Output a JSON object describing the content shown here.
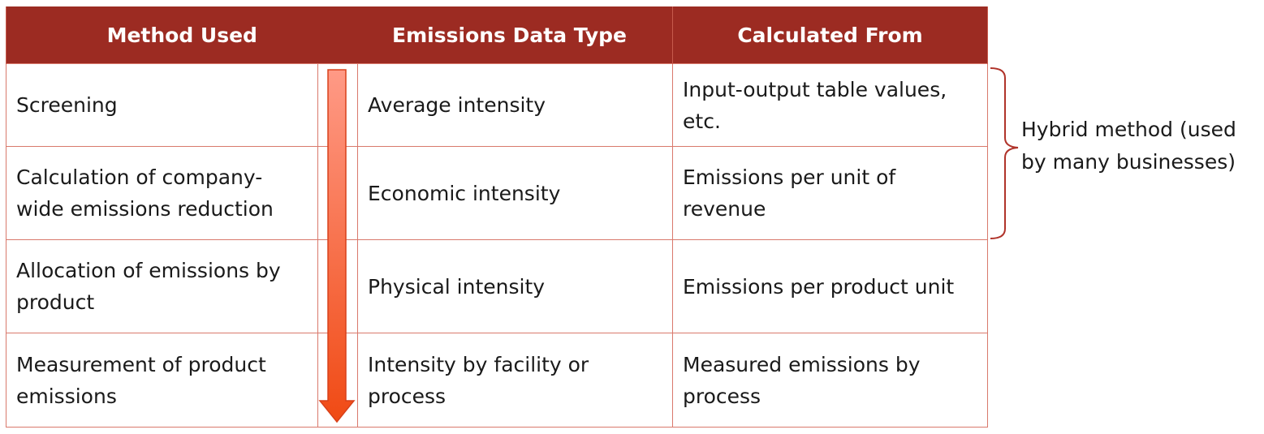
{
  "table": {
    "headers": {
      "method": "Method Used",
      "data_type": "Emissions Data Type",
      "calculated_from": "Calculated From"
    },
    "rows": [
      {
        "method": "Screening",
        "data_type": "Average intensity",
        "calculated_from": "Input-output table values, etc."
      },
      {
        "method": "Calculation of company-wide emissions reduction",
        "data_type": "Economic intensity",
        "calculated_from": "Emissions per unit of revenue"
      },
      {
        "method": "Allocation of emissions by product",
        "data_type": "Physical intensity",
        "calculated_from": "Emissions per product unit"
      },
      {
        "method": "Measurement of product emissions",
        "data_type": "Intensity by facility or process",
        "calculated_from": "Measured emissions by process"
      }
    ]
  },
  "annotation": {
    "hybrid_label": "Hybrid method (used by many businesses)"
  },
  "colors": {
    "header_bg": "#9c2b22",
    "header_text": "#ffffff",
    "grid_line": "#d9796c",
    "arrow_top": "#ff9a86",
    "arrow_bottom": "#f04a14",
    "bracket": "#b0332a"
  }
}
